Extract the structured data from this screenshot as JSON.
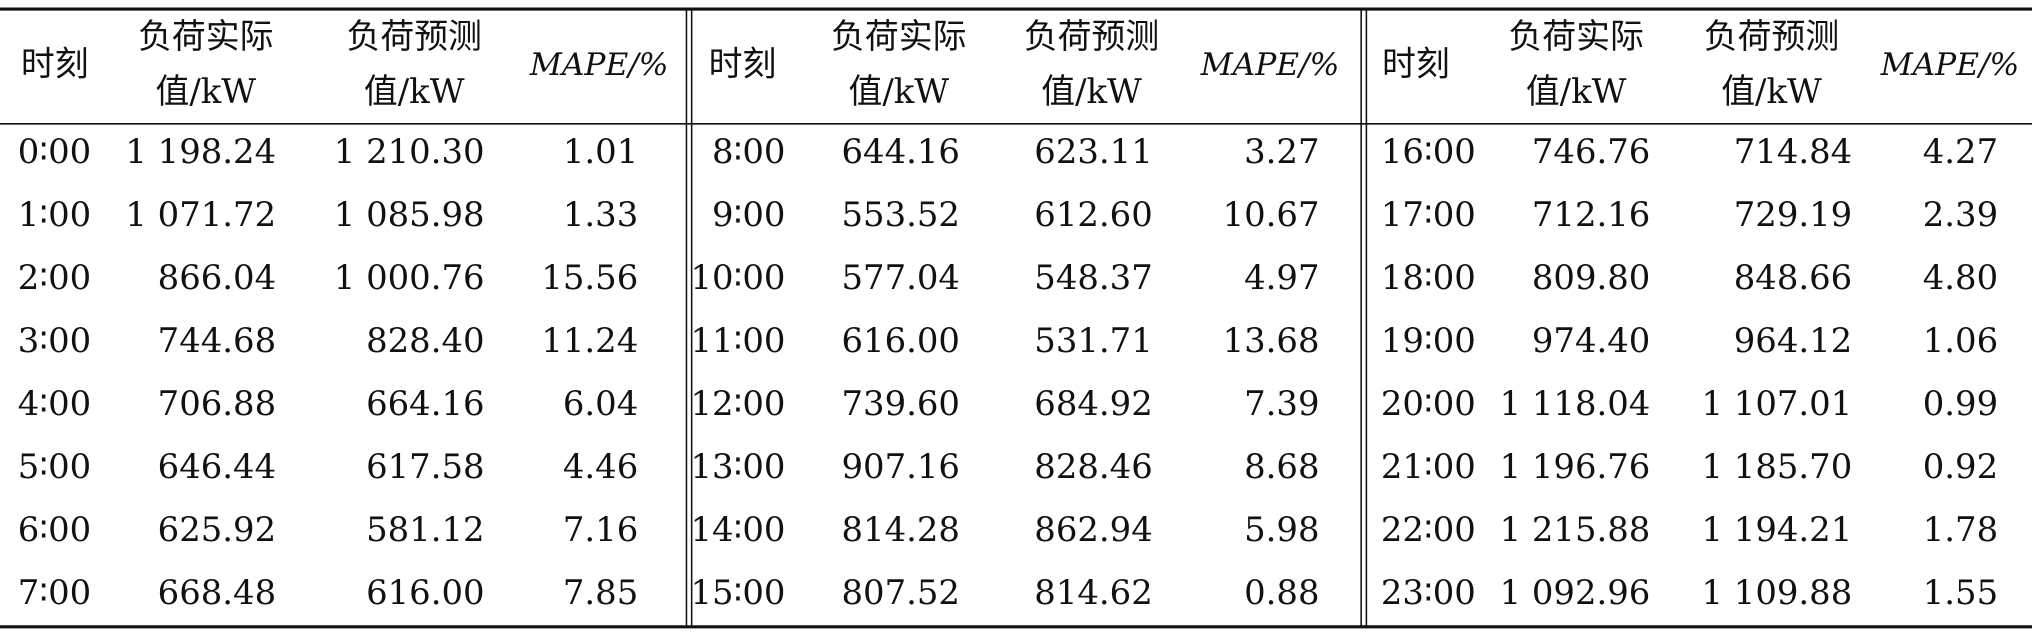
{
  "table": {
    "header": [
      [
        "时刻"
      ],
      [
        "负荷实际",
        "值/kW"
      ],
      [
        "负荷预测",
        "值/kW"
      ],
      [
        "MAPE/%"
      ]
    ],
    "panels": [
      {
        "rows": [
          [
            "0∶00",
            "1 198.24",
            "1 210.30",
            "1.01"
          ],
          [
            "1∶00",
            "1 071.72",
            "1 085.98",
            "1.33"
          ],
          [
            "2∶00",
            "866.04",
            "1 000.76",
            "15.56"
          ],
          [
            "3∶00",
            "744.68",
            "828.40",
            "11.24"
          ],
          [
            "4∶00",
            "706.88",
            "664.16",
            "6.04"
          ],
          [
            "5∶00",
            "646.44",
            "617.58",
            "4.46"
          ],
          [
            "6∶00",
            "625.92",
            "581.12",
            "7.16"
          ],
          [
            "7∶00",
            "668.48",
            "616.00",
            "7.85"
          ]
        ]
      },
      {
        "rows": [
          [
            "8∶00",
            "644.16",
            "623.11",
            "3.27"
          ],
          [
            "9∶00",
            "553.52",
            "612.60",
            "10.67"
          ],
          [
            "10∶00",
            "577.04",
            "548.37",
            "4.97"
          ],
          [
            "11∶00",
            "616.00",
            "531.71",
            "13.68"
          ],
          [
            "12∶00",
            "739.60",
            "684.92",
            "7.39"
          ],
          [
            "13∶00",
            "907.16",
            "828.46",
            "8.68"
          ],
          [
            "14∶00",
            "814.28",
            "862.94",
            "5.98"
          ],
          [
            "15∶00",
            "807.52",
            "814.62",
            "0.88"
          ]
        ]
      },
      {
        "rows": [
          [
            "16∶00",
            "746.76",
            "714.84",
            "4.27"
          ],
          [
            "17∶00",
            "712.16",
            "729.19",
            "2.39"
          ],
          [
            "18∶00",
            "809.80",
            "848.66",
            "4.80"
          ],
          [
            "19∶00",
            "974.40",
            "964.12",
            "1.06"
          ],
          [
            "20∶00",
            "1 118.04",
            "1 107.01",
            "0.99"
          ],
          [
            "21∶00",
            "1 196.76",
            "1 185.70",
            "0.92"
          ],
          [
            "22∶00",
            "1 215.88",
            "1 194.21",
            "1.78"
          ],
          [
            "23∶00",
            "1 092.96",
            "1 109.88",
            "1.55"
          ]
        ]
      }
    ]
  }
}
